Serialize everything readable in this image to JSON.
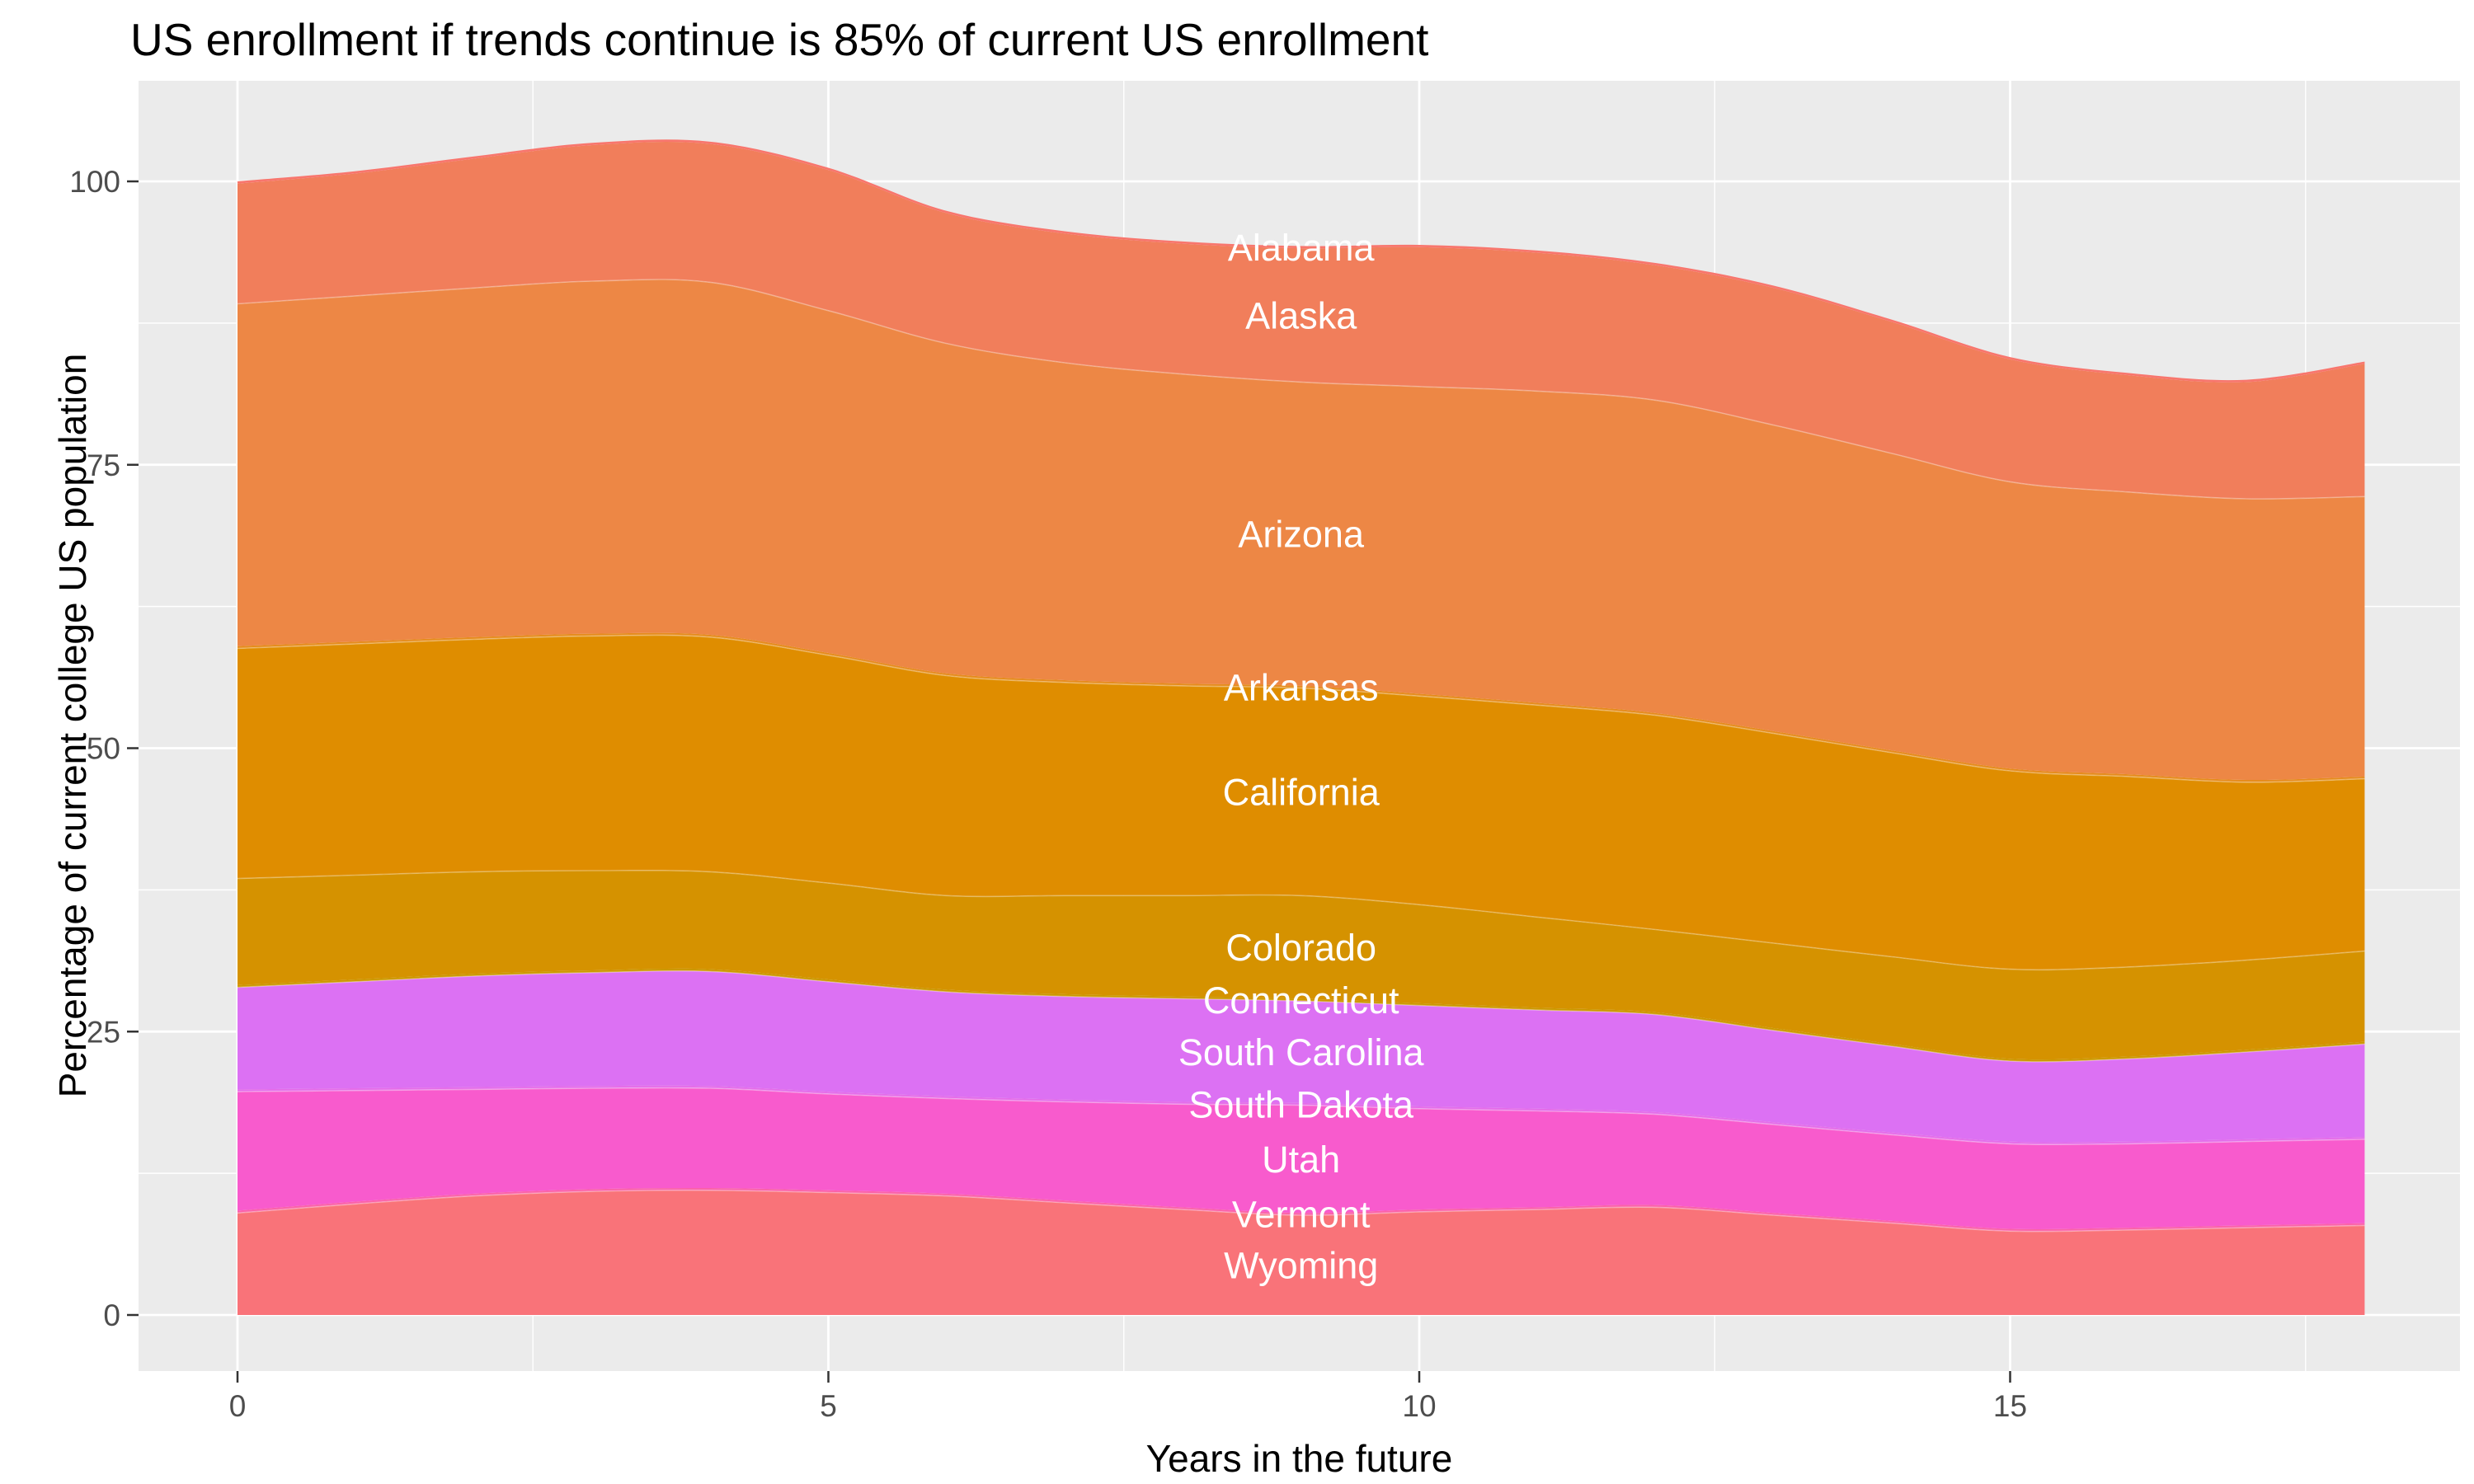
{
  "chart_data": {
    "type": "area",
    "stacked": true,
    "title": "US enrollment if trends continue is 85% of current US enrollment",
    "xlabel": "Years in the future",
    "ylabel": "Percentage of current college US population",
    "x": [
      0,
      1,
      2,
      3,
      4,
      5,
      6,
      7,
      8,
      9,
      10,
      11,
      12,
      13,
      14,
      15,
      16,
      17,
      18
    ],
    "x_ticks": [
      0,
      5,
      10,
      15
    ],
    "x_minor_ticks": [
      2.5,
      7.5,
      12.5,
      17.5
    ],
    "y_ticks": [
      0,
      25,
      50,
      75,
      100
    ],
    "y_minor_ticks": [
      12.5,
      37.5,
      62.5,
      87.5
    ],
    "xlim": [
      0,
      18
    ],
    "ylim": [
      0,
      103.5
    ],
    "grid": true,
    "legend_position": "none",
    "label_x": 9,
    "series": [
      {
        "name": "Alabama",
        "color": "#F8766D",
        "values": [
          0.2,
          0.2,
          0.2,
          0.2,
          0.2,
          0.2,
          0.2,
          0.2,
          0.2,
          0.2,
          0.2,
          0.2,
          0.2,
          0.2,
          0.2,
          0.2,
          0.2,
          0.2,
          0.2
        ]
      },
      {
        "name": "Alaska",
        "color": "#F17E5B",
        "values": [
          10.6,
          10.8,
          11.4,
          12.0,
          12.2,
          12.4,
          11.5,
          11.4,
          11.5,
          11.8,
          12.3,
          12.2,
          11.9,
          12.1,
          11.6,
          10.8,
          10.3,
          10.3,
          11.7
        ]
      },
      {
        "name": "Arizona",
        "color": "#ED8745",
        "values": [
          30.2,
          30.5,
          30.8,
          31.1,
          31.1,
          30.2,
          29.1,
          28.0,
          27.3,
          26.8,
          27.1,
          27.5,
          27.6,
          27.0,
          26.2,
          25.3,
          24.9,
          24.8,
          24.7
        ]
      },
      {
        "name": "Arkansas",
        "color": "#E68C1C",
        "values": [
          0.2,
          0.2,
          0.2,
          0.2,
          0.2,
          0.2,
          0.2,
          0.2,
          0.2,
          0.2,
          0.2,
          0.2,
          0.2,
          0.2,
          0.2,
          0.2,
          0.2,
          0.2,
          0.2
        ]
      },
      {
        "name": "California",
        "color": "#DF8D00",
        "values": [
          20.3,
          20.4,
          20.5,
          20.7,
          20.7,
          20.1,
          19.4,
          18.8,
          18.5,
          18.3,
          18.4,
          18.7,
          18.9,
          18.5,
          18.0,
          17.5,
          16.8,
          15.7,
          15.2
        ]
      },
      {
        "name": "Colorado",
        "color": "#D59200",
        "values": [
          9.4,
          9.2,
          9.0,
          8.8,
          8.6,
          8.5,
          8.3,
          8.7,
          8.9,
          9.1,
          8.7,
          8.0,
          7.3,
          7.5,
          7.7,
          7.9,
          7.9,
          7.9,
          8.0
        ]
      },
      {
        "name": "Connecticut",
        "color": "#CC9800",
        "values": [
          0.2,
          0.2,
          0.2,
          0.2,
          0.2,
          0.2,
          0.2,
          0.2,
          0.2,
          0.2,
          0.2,
          0.2,
          0.2,
          0.2,
          0.2,
          0.2,
          0.2,
          0.2,
          0.2
        ]
      },
      {
        "name": "South Carolina",
        "color": "#DC71F3",
        "values": [
          9.0,
          9.4,
          9.8,
          10.0,
          10.1,
          9.7,
          9.2,
          9.1,
          9.1,
          9.0,
          8.9,
          8.7,
          8.6,
          8.1,
          7.6,
          7.1,
          7.3,
          7.7,
          8.2
        ]
      },
      {
        "name": "South Dakota",
        "color": "#E56DE9",
        "values": [
          0.2,
          0.2,
          0.2,
          0.2,
          0.2,
          0.2,
          0.2,
          0.2,
          0.2,
          0.2,
          0.2,
          0.2,
          0.2,
          0.2,
          0.2,
          0.2,
          0.2,
          0.2,
          0.2
        ]
      },
      {
        "name": "Utah",
        "color": "#F85BCD",
        "values": [
          10.5,
          9.8,
          9.2,
          8.9,
          8.8,
          8.5,
          8.4,
          8.7,
          9.1,
          9.5,
          8.9,
          8.5,
          8.0,
          7.8,
          7.6,
          7.5,
          7.4,
          7.4,
          7.4
        ]
      },
      {
        "name": "Vermont",
        "color": "#FB62A8",
        "values": [
          0.2,
          0.2,
          0.2,
          0.2,
          0.2,
          0.2,
          0.2,
          0.2,
          0.2,
          0.2,
          0.2,
          0.2,
          0.2,
          0.2,
          0.2,
          0.2,
          0.2,
          0.2,
          0.2
        ]
      },
      {
        "name": "Wyoming",
        "color": "#F97379",
        "values": [
          9.0,
          9.8,
          10.5,
          10.9,
          11.0,
          10.8,
          10.5,
          9.9,
          9.3,
          8.8,
          9.1,
          9.3,
          9.5,
          8.8,
          8.1,
          7.4,
          7.5,
          7.7,
          7.9
        ]
      }
    ],
    "seam_boundaries": [
      "Arizona",
      "California",
      "Colorado",
      "South Carolina",
      "Utah",
      "Wyoming"
    ]
  },
  "style": {
    "panel_bg": "#EBEBEB",
    "grid_color": "#FFFFFF",
    "tick_color": "#333333",
    "tick_label_color": "#4D4D4D",
    "title_color": "#000000",
    "area_label_color": "#FFFFFF"
  }
}
